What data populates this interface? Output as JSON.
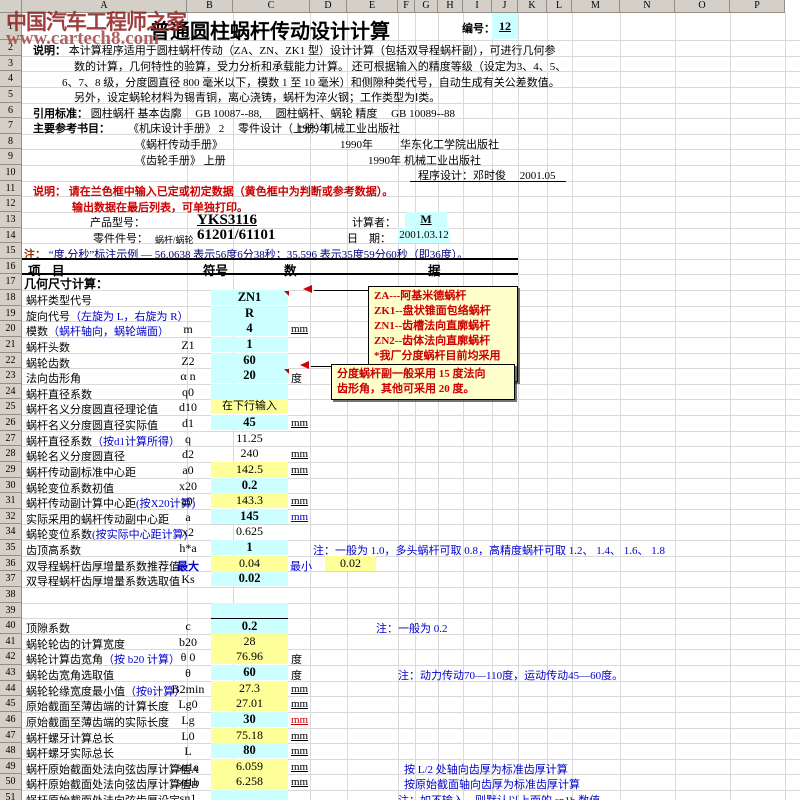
{
  "watermark": {
    "line1": "中国汽车工程师之家",
    "line2": "www.cartech8.com"
  },
  "colors": {
    "input_cell": "#ccffff",
    "ref_cell": "#ffff99",
    "note_blue": "#0000cc",
    "alert_red": "#cc0000",
    "comment_bg": "#ffffcc"
  },
  "column_letters": [
    "A",
    "B",
    "C",
    "D",
    "E",
    "F",
    "G",
    "H",
    "I",
    "J",
    "K",
    "L",
    "M",
    "N",
    "O",
    "P"
  ],
  "title": {
    "text": "普通圆柱蜗杆传动设计计算",
    "sn_label": "编号：",
    "sn_value": "12"
  },
  "intro": {
    "label": "说明：",
    "line1": "本计算程序适用于圆柱蜗杆传动（ZA、ZN、ZK1 型）设计计算（包括双导程蜗杆副），可进行几何参",
    "line2": "数的计算，几何特性的验算，受力分析和承载能力计算。 还可根据输入的精度等级（设定为3、4、5、",
    "line3": "6、7、8 级，分度圆直径 800 毫米以下，模数 1 至 10 毫米）和侧隙种类代号，自动生成有关公差数值。",
    "line4": "另外，设定蜗轮材料为锡青铜，离心浇铸，蜗杆为淬火钢；工作类型为Ⅰ类。"
  },
  "standards": {
    "label": "引用标准：",
    "text": "圆柱蜗杆 基本齿廓　 GB 10087--88,　 圆柱蜗杆、蜗轮 精度　 GB 10089--88"
  },
  "references": {
    "label": "主要参考书目：",
    "book1": "《机床设计手册》 2 　零件设计（上册）",
    "year1": "1979年",
    "pub1": "机械工业出版社",
    "book2": "《蜗杆传动手册》",
    "year2": "1990年",
    "pub2": "华东化工学院出版社",
    "book3": "《齿轮手册》 上册",
    "year3": "1990年",
    "pub3": "机械工业出版社"
  },
  "program_credit": "程序设计：邓时俊　 2001.05",
  "notice": {
    "label": "说明：",
    "line1": "请在兰色框中输入已定或初定数据（黄色框中为判断或参考数据）。",
    "line2": "输出数据在最后列表，可单独打印。"
  },
  "product": {
    "label": "产品型号：",
    "value": "YKS3116",
    "calc_label": "计算者：",
    "calc_value": "M"
  },
  "part": {
    "label": "零件件号：",
    "sub_label": "蜗杆/蜗轮",
    "value": "61201/61101",
    "date_label": "日　期：",
    "date_value": "2001.03.12"
  },
  "deg_note": {
    "label": "注：",
    "text": "“度.分秒”标注示例 — 56.0638 表示56度6分38秒；35.596 表示35度59分60秒（即36度）。"
  },
  "table_header": {
    "item1": "项",
    "item2": "目",
    "symbol": "符号",
    "data1": "数",
    "data2": "据"
  },
  "comment1": {
    "lines": [
      "ZA---阿基米德蜗杆",
      "ZK1--盘状锥面包络蜗杆",
      "ZN1--齿槽法向直廓蜗杆",
      "ZN2--齿体法向直廓蜗杆",
      "*我厂分度蜗杆目前均采用",
      "ZN1 型"
    ]
  },
  "comment2": {
    "lines": [
      "分度蜗杆副一般采用 15 度法向",
      "齿形角，其他可采用 20 度。"
    ]
  },
  "rows": [
    {
      "n": "17",
      "type": "section",
      "label": "几何尺寸计算："
    },
    {
      "n": "18",
      "label": "蜗杆类型代号",
      "sym": "",
      "val": "ZN1",
      "fill": "cyan",
      "bold": true,
      "marker": true
    },
    {
      "n": "19",
      "label": "旋向代号",
      "blue": "（左旋为 L，右旋为 R）",
      "sym": "",
      "val": "R",
      "fill": "cyan",
      "bold": true
    },
    {
      "n": "20",
      "label": "模数",
      "blue": "（蜗杆轴向，蜗轮端面）",
      "sym": "m",
      "val": "4",
      "fill": "cyan",
      "bold": true,
      "unit": "mm"
    },
    {
      "n": "21",
      "label": "蜗杆头数",
      "sym": "Z1",
      "val": "1",
      "fill": "cyan",
      "bold": true
    },
    {
      "n": "22",
      "label": "蜗轮齿数",
      "sym": "Z2",
      "val": "60",
      "fill": "cyan",
      "bold": true
    },
    {
      "n": "23",
      "label": "法向齿形角",
      "sym": "α n",
      "val": "20",
      "fill": "cyan",
      "bold": true,
      "unit": "度",
      "marker": true
    },
    {
      "n": "24",
      "label": "蜗杆直径系数",
      "sym": "q0",
      "val": "",
      "fill": "cyan"
    },
    {
      "n": "25",
      "label": "蜗杆名义分度圆直径理论值",
      "sym": "d10",
      "val": "在下行输入",
      "fill": "yellow",
      "small": true
    },
    {
      "n": "26",
      "label": "蜗杆名义分度圆直径实际值",
      "sym": "d1",
      "val": "45",
      "fill": "cyan",
      "bold": true,
      "unit": "mm"
    },
    {
      "n": "27",
      "label": "蜗杆直径系数",
      "blue": "（按d1计算所得）",
      "sym": "q",
      "val": "11.25"
    },
    {
      "n": "28",
      "label": "蜗轮名义分度圆直径",
      "sym": "d2",
      "val": "240",
      "unit": "mm"
    },
    {
      "n": "29",
      "label": "蜗杆传动副标准中心距",
      "sym": "a0",
      "val": "142.5",
      "fill": "yellow",
      "unit": "mm"
    },
    {
      "n": "30",
      "label": "蜗轮变位系数初值",
      "sym": "x20",
      "val": "0.2",
      "fill": "cyan",
      "bold": true
    },
    {
      "n": "31",
      "label": "蜗杆传动副计算中心距",
      "blue": "(按X20计算)",
      "sym": "a0'",
      "val": "143.3",
      "fill": "yellow",
      "unit": "mm"
    },
    {
      "n": "32",
      "label": "实际采用的蜗杆传动副中心距",
      "sym": "a",
      "val": "145",
      "fill": "cyan",
      "bold": true,
      "unit": "mm",
      "unitColor": "#0000cc"
    },
    {
      "n": "34",
      "label": "蜗轮变位系数",
      "blue": "(按实际中心距计算)",
      "sym": "x2",
      "val": "0.625"
    },
    {
      "n": "35",
      "label": "齿顶高系数",
      "sym": "h*a",
      "val": "1",
      "fill": "cyan",
      "bold": true,
      "note": "注：一般为 1.0，多头蜗杆可取 0.8，高精度蜗杆可取 1.2、 1.4、 1.6、 1.8"
    },
    {
      "n": "36",
      "label": "双导程蜗杆齿厚增量系数推荐值",
      "symBlue": "最大",
      "val": "0.04",
      "fill": "yellow",
      "min_label": "最小",
      "min_val": "0.02"
    },
    {
      "n": "37",
      "label": "双导程蜗杆齿厚增量系数选取值",
      "sym": "Ks",
      "val": "0.02",
      "fill": "cyan",
      "bold": true
    },
    {
      "n": "38",
      "label": "",
      "sym": "",
      "val": ""
    },
    {
      "n": "39",
      "label": "",
      "sym": "",
      "val": "",
      "fill": "cyan"
    },
    {
      "n": "40",
      "label": "顶隙系数",
      "sym": "c",
      "val": "0.2",
      "fill": "cyan",
      "bold": true,
      "topline": true,
      "note": "注：一般为 0.2"
    },
    {
      "n": "41",
      "label": "蜗轮轮齿的计算宽度",
      "sym": "b20",
      "val": "28",
      "fill": "yellow"
    },
    {
      "n": "42",
      "label": "蜗轮计算齿宽角",
      "blue": "（按 b20 计算）",
      "sym": "θ 0",
      "val": "76.96",
      "fill": "yellow",
      "unit": "度"
    },
    {
      "n": "43",
      "label": "蜗轮齿宽角选取值",
      "sym": "θ",
      "val": "60",
      "fill": "cyan",
      "bold": true,
      "unit": "度",
      "note": "注：动力传动70—110度，运动传动45—60度。"
    },
    {
      "n": "44",
      "label": "蜗轮轮缘宽度最小值",
      "blue": "（按θ计算）",
      "sym": "B2min",
      "val": "27.3",
      "fill": "yellow",
      "unit": "mm"
    },
    {
      "n": "45",
      "label": "原始截面至薄齿端的计算长度",
      "sym": "Lg0",
      "val": "27.01",
      "fill": "yellow",
      "unit": "mm"
    },
    {
      "n": "46",
      "label": "原始截面至薄齿端的实际长度",
      "sym": "Lg",
      "val": "30",
      "fill": "cyan",
      "bold": true,
      "unit": "mm",
      "unitColor": "#cc0000"
    },
    {
      "n": "47",
      "label": "蜗杆螺牙计算总长",
      "sym": "L0",
      "val": "75.18",
      "fill": "yellow",
      "unit": "mm"
    },
    {
      "n": "48",
      "label": "蜗杆螺牙实际总长",
      "sym": "L",
      "val": "80",
      "fill": "cyan",
      "bold": true,
      "unit": "mm"
    },
    {
      "n": "49",
      "label": "蜗杆原始截面处法向弦齿厚计算值A",
      "sym": "sn1a",
      "val": "6.059",
      "fill": "yellow",
      "unit": "mm",
      "note": "按 L/2 处轴向齿厚为标准齿厚计算"
    },
    {
      "n": "50",
      "label": "蜗杆原始截面处法向弦齿厚计算值B",
      "sym": "sn1b",
      "val": "6.258",
      "fill": "yellow",
      "unit": "mm",
      "note": "按原始截面轴向齿厚为标准齿厚计算"
    },
    {
      "n": "51",
      "label": "蜗杆原始截面处法向弦齿厚设定",
      "sym": "sn1",
      "val": "",
      "fill": "cyan",
      "note": "注：如不输入，则默认以上面的 sn1b 数值"
    }
  ]
}
